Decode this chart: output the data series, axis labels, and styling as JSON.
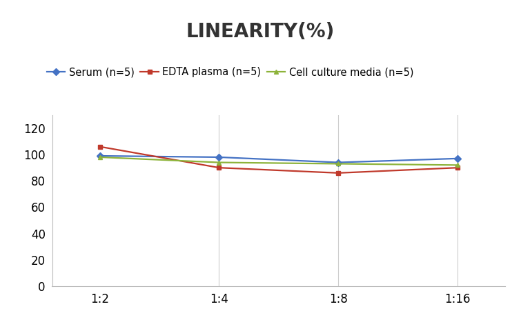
{
  "title": "LINEARITY(%)",
  "x_labels": [
    "1:2",
    "1:4",
    "1:8",
    "1:16"
  ],
  "x_positions": [
    0,
    1,
    2,
    3
  ],
  "series": [
    {
      "label": "Serum (n=5)",
      "values": [
        99,
        98,
        94,
        97
      ],
      "color": "#4472C4",
      "marker": "D",
      "markersize": 5,
      "linewidth": 1.6
    },
    {
      "label": "EDTA plasma (n=5)",
      "values": [
        106,
        90,
        86,
        90
      ],
      "color": "#C0392B",
      "marker": "s",
      "markersize": 5,
      "linewidth": 1.6
    },
    {
      "label": "Cell culture media (n=5)",
      "values": [
        98,
        94,
        93,
        92
      ],
      "color": "#8DB33A",
      "marker": "^",
      "markersize": 5,
      "linewidth": 1.6
    }
  ],
  "ylim": [
    0,
    130
  ],
  "yticks": [
    0,
    20,
    40,
    60,
    80,
    100,
    120
  ],
  "background_color": "#ffffff",
  "title_fontsize": 20,
  "legend_fontsize": 10.5,
  "tick_fontsize": 12,
  "grid_color": "#cccccc",
  "spine_color": "#bbbbbb"
}
